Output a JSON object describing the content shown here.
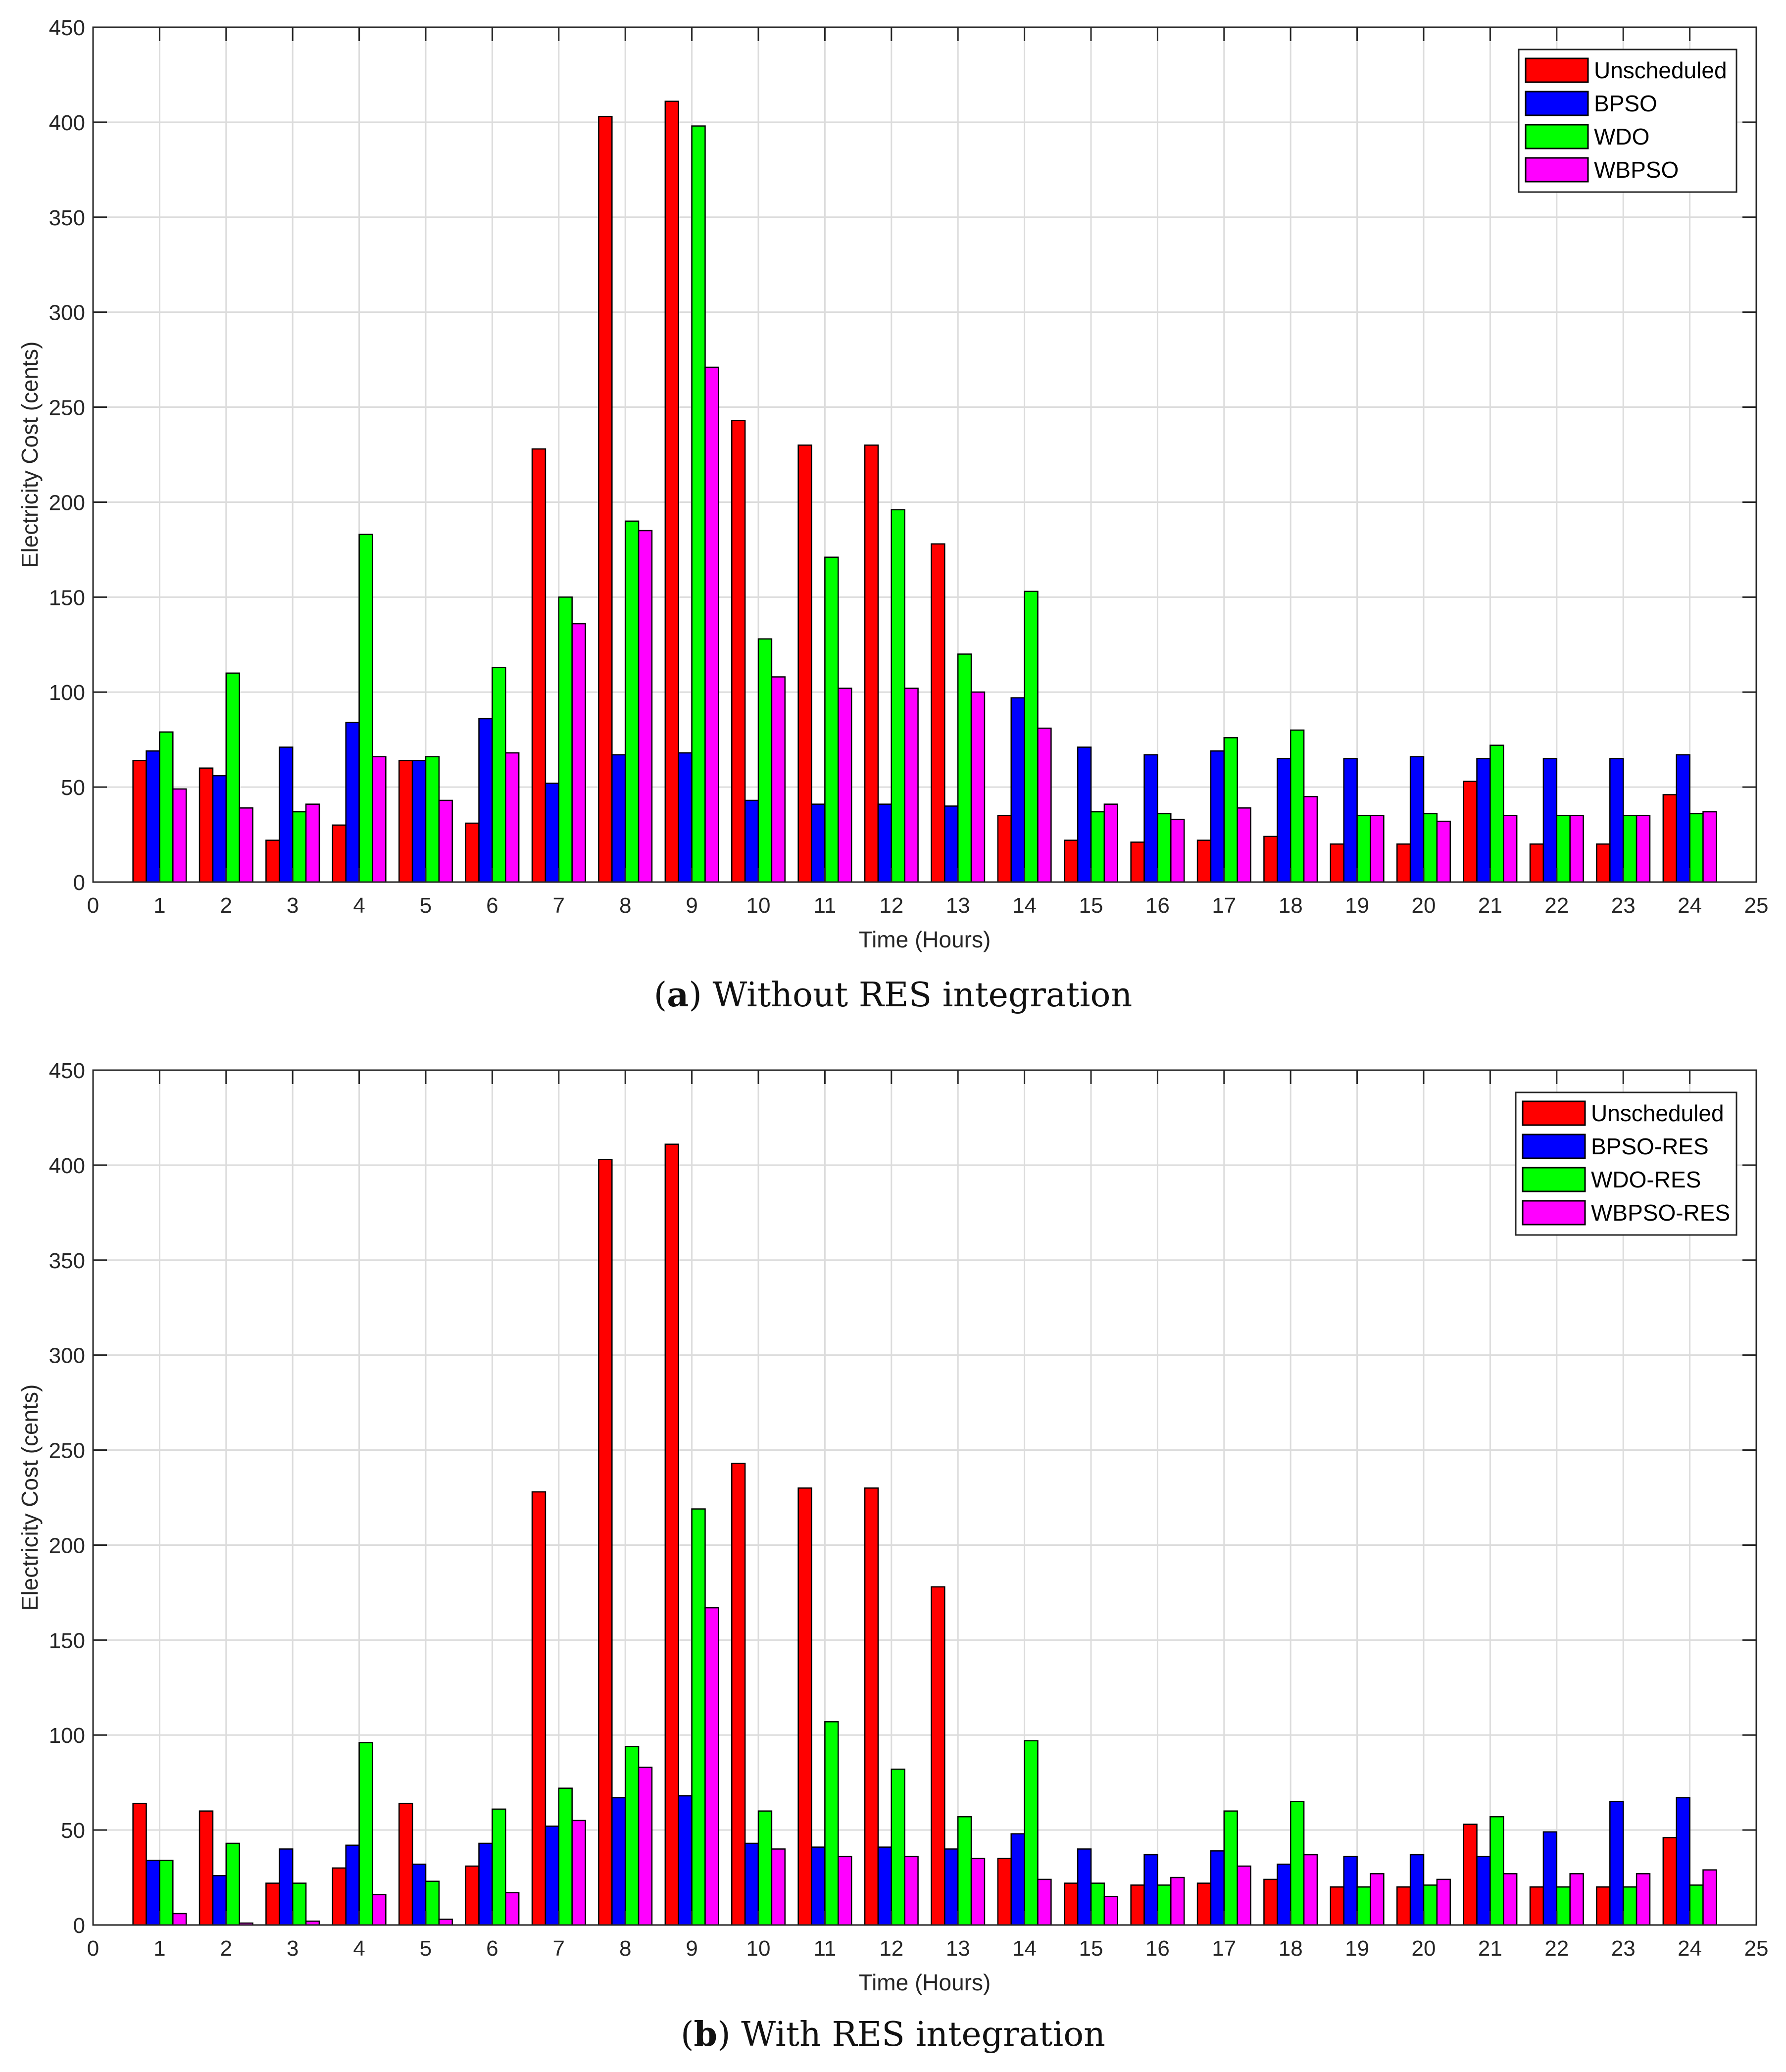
{
  "chart_data": [
    {
      "type": "bar",
      "panel": "a",
      "caption_letter": "a",
      "caption_text": "Without RES integration",
      "xlabel": "Time (Hours)",
      "ylabel": "Electricity Cost (cents)",
      "xlim": [
        0,
        25
      ],
      "ylim": [
        0,
        450
      ],
      "xticks": [
        "0",
        "1",
        "2",
        "3",
        "4",
        "5",
        "6",
        "7",
        "8",
        "9",
        "10",
        "11",
        "12",
        "13",
        "14",
        "15",
        "16",
        "17",
        "18",
        "19",
        "20",
        "21",
        "22",
        "23",
        "24",
        "25"
      ],
      "yticks": [
        "0",
        "50",
        "100",
        "150",
        "200",
        "250",
        "300",
        "350",
        "400",
        "450"
      ],
      "grid": true,
      "legend_position": "top-right",
      "categories": [
        1,
        2,
        3,
        4,
        5,
        6,
        7,
        8,
        9,
        10,
        11,
        12,
        13,
        14,
        15,
        16,
        17,
        18,
        19,
        20,
        21,
        22,
        23,
        24
      ],
      "series": [
        {
          "name": "Unscheduled",
          "color": "#ff0000",
          "values": [
            64,
            60,
            22,
            30,
            64,
            31,
            228,
            403,
            411,
            243,
            230,
            230,
            178,
            35,
            22,
            21,
            22,
            24,
            20,
            20,
            53,
            20,
            20,
            46
          ]
        },
        {
          "name": "BPSO",
          "color": "#0000ff",
          "values": [
            69,
            56,
            71,
            84,
            64,
            86,
            52,
            67,
            68,
            43,
            41,
            41,
            40,
            97,
            71,
            67,
            69,
            65,
            65,
            66,
            65,
            65,
            65,
            67
          ]
        },
        {
          "name": "WDO",
          "color": "#00ff00",
          "values": [
            79,
            110,
            37,
            183,
            66,
            113,
            150,
            190,
            398,
            128,
            171,
            196,
            120,
            153,
            37,
            36,
            76,
            80,
            35,
            36,
            72,
            35,
            35,
            36
          ]
        },
        {
          "name": "WBPSO",
          "color": "#ff00ff",
          "values": [
            49,
            39,
            41,
            66,
            43,
            68,
            136,
            185,
            271,
            108,
            102,
            102,
            100,
            81,
            41,
            33,
            39,
            45,
            35,
            32,
            35,
            35,
            35,
            37
          ]
        }
      ]
    },
    {
      "type": "bar",
      "panel": "b",
      "caption_letter": "b",
      "caption_text": "With RES integration",
      "xlabel": "Time (Hours)",
      "ylabel": "Electricity Cost (cents)",
      "xlim": [
        0,
        25
      ],
      "ylim": [
        0,
        450
      ],
      "xticks": [
        "0",
        "1",
        "2",
        "3",
        "4",
        "5",
        "6",
        "7",
        "8",
        "9",
        "10",
        "11",
        "12",
        "13",
        "14",
        "15",
        "16",
        "17",
        "18",
        "19",
        "20",
        "21",
        "22",
        "23",
        "24",
        "25"
      ],
      "yticks": [
        "0",
        "50",
        "100",
        "150",
        "200",
        "250",
        "300",
        "350",
        "400",
        "450"
      ],
      "grid": true,
      "legend_position": "top-right",
      "categories": [
        1,
        2,
        3,
        4,
        5,
        6,
        7,
        8,
        9,
        10,
        11,
        12,
        13,
        14,
        15,
        16,
        17,
        18,
        19,
        20,
        21,
        22,
        23,
        24
      ],
      "series": [
        {
          "name": "Unscheduled",
          "color": "#ff0000",
          "values": [
            64,
            60,
            22,
            30,
            64,
            31,
            228,
            403,
            411,
            243,
            230,
            230,
            178,
            35,
            22,
            21,
            22,
            24,
            20,
            20,
            53,
            20,
            20,
            46
          ]
        },
        {
          "name": "BPSO-RES",
          "color": "#0000ff",
          "values": [
            34,
            26,
            40,
            42,
            32,
            43,
            52,
            67,
            68,
            43,
            41,
            41,
            40,
            48,
            40,
            37,
            39,
            32,
            36,
            37,
            36,
            49,
            65,
            67
          ]
        },
        {
          "name": "WDO-RES",
          "color": "#00ff00",
          "values": [
            34,
            43,
            22,
            96,
            23,
            61,
            72,
            94,
            219,
            60,
            107,
            82,
            57,
            97,
            22,
            21,
            60,
            65,
            20,
            21,
            57,
            20,
            20,
            21
          ]
        },
        {
          "name": "WBPSO-RES",
          "color": "#ff00ff",
          "values": [
            6,
            1,
            2,
            16,
            3,
            17,
            55,
            83,
            167,
            40,
            36,
            36,
            35,
            24,
            15,
            25,
            31,
            37,
            27,
            24,
            27,
            27,
            27,
            29
          ]
        }
      ]
    }
  ]
}
